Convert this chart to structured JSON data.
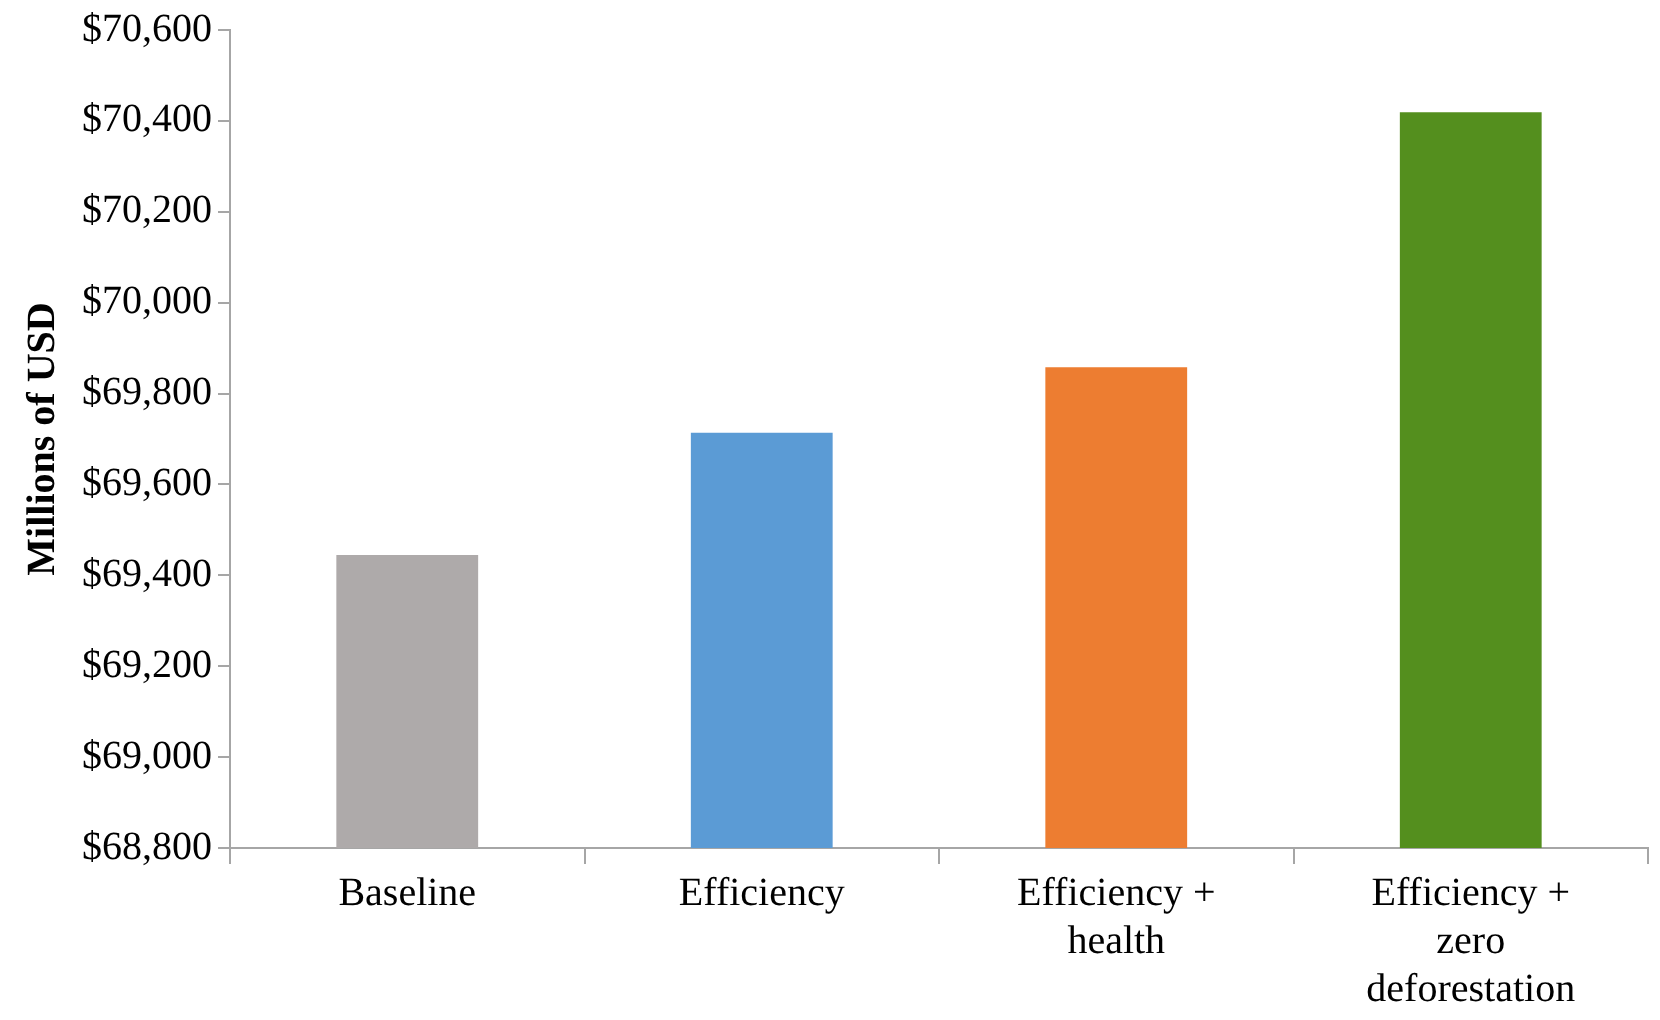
{
  "chart_data": {
    "type": "bar",
    "ylabel": "Millions of USD",
    "categories": [
      "Baseline",
      "Efficiency",
      "Efficiency + health",
      "Efficiency + zero deforestation"
    ],
    "values": [
      69445,
      69714,
      69858,
      70419
    ],
    "colors": [
      "#aeaaaa",
      "#5b9bd5",
      "#ed7d31",
      "#548f1e"
    ],
    "ylim": [
      68800,
      70600
    ],
    "yticks": [
      {
        "value": 68800,
        "label": "$68,800"
      },
      {
        "value": 69000,
        "label": "$69,000"
      },
      {
        "value": 69200,
        "label": "$69,200"
      },
      {
        "value": 69400,
        "label": "$69,400"
      },
      {
        "value": 69600,
        "label": "$69,600"
      },
      {
        "value": 69800,
        "label": "$69,800"
      },
      {
        "value": 70000,
        "label": "$70,000"
      },
      {
        "value": 70200,
        "label": "$70,200"
      },
      {
        "value": 70400,
        "label": "$70,400"
      },
      {
        "value": 70600,
        "label": "$70,600"
      }
    ],
    "grid": false,
    "legend": false
  }
}
